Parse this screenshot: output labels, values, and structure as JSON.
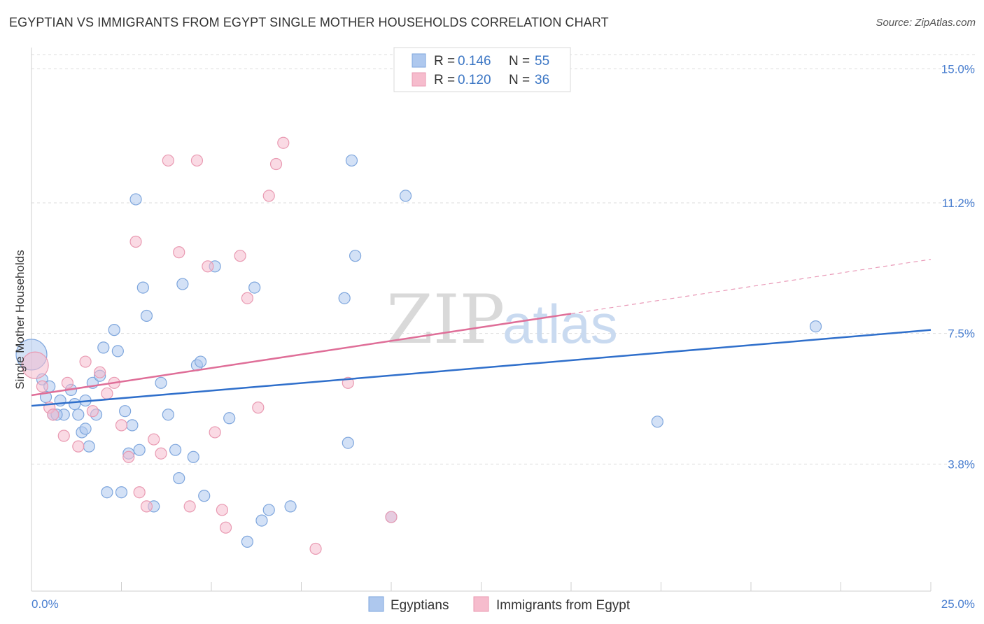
{
  "header": {
    "title": "EGYPTIAN VS IMMIGRANTS FROM EGYPT SINGLE MOTHER HOUSEHOLDS CORRELATION CHART",
    "source": "Source: ZipAtlas.com"
  },
  "watermark": {
    "zip": "ZIP",
    "atlas": "atlas"
  },
  "legend": {
    "rows": [
      {
        "r_label": "R =",
        "r_value": "0.146",
        "n_label": "N =",
        "n_value": "55"
      },
      {
        "r_label": "R =",
        "r_value": "0.120",
        "n_label": "N =",
        "n_value": "36"
      }
    ]
  },
  "bottom_legend": {
    "items": [
      "Egyptians",
      "Immigrants from Egypt"
    ]
  },
  "colors": {
    "blue_fill": "#aec8ee",
    "blue_stroke": "#7ea6dd",
    "blue_line": "#2f6fcb",
    "pink_fill": "#f6bccd",
    "pink_stroke": "#e99ab2",
    "pink_line": "#df6e98",
    "grid": "#dddddd",
    "axis_text": "#4a7fd0"
  },
  "chart_data": {
    "type": "scatter",
    "title": "EGYPTIAN VS IMMIGRANTS FROM EGYPT SINGLE MOTHER HOUSEHOLDS CORRELATION CHART",
    "xlabel": "",
    "ylabel": "Single Mother Households",
    "xlim": [
      0,
      25
    ],
    "ylim": [
      0.2,
      15.6
    ],
    "x_tick_labels": [
      "0.0%",
      "25.0%"
    ],
    "y_ticks": [
      3.8,
      7.5,
      11.2,
      15.0
    ],
    "y_tick_labels": [
      "3.8%",
      "7.5%",
      "11.2%",
      "15.0%"
    ],
    "grid": true,
    "series": [
      {
        "name": "Egyptians",
        "color": "blue",
        "r": "0.146",
        "n": "55",
        "trend": {
          "x0": 0,
          "y0": 5.45,
          "x1": 25,
          "y1": 7.6,
          "dash_from": null
        },
        "points": [
          [
            0.0,
            6.9,
            3
          ],
          [
            0.3,
            6.2,
            1
          ],
          [
            0.6,
            5.2,
            1
          ],
          [
            0.8,
            5.6,
            1
          ],
          [
            0.9,
            5.2,
            1
          ],
          [
            1.1,
            5.9,
            1
          ],
          [
            1.2,
            5.5,
            1
          ],
          [
            1.3,
            5.2,
            1
          ],
          [
            1.4,
            4.7,
            1
          ],
          [
            1.5,
            4.8,
            1
          ],
          [
            1.5,
            5.6,
            1
          ],
          [
            1.6,
            4.3,
            1
          ],
          [
            1.7,
            6.1,
            1
          ],
          [
            1.8,
            5.2,
            1
          ],
          [
            1.9,
            6.3,
            1
          ],
          [
            2.0,
            7.1,
            1
          ],
          [
            2.1,
            3.0,
            1
          ],
          [
            2.3,
            7.6,
            1
          ],
          [
            2.4,
            7.0,
            1
          ],
          [
            2.5,
            3.0,
            1
          ],
          [
            2.6,
            5.3,
            1
          ],
          [
            2.7,
            4.1,
            1
          ],
          [
            2.8,
            4.9,
            1
          ],
          [
            2.9,
            11.3,
            1
          ],
          [
            3.0,
            4.2,
            1
          ],
          [
            3.1,
            8.8,
            1
          ],
          [
            3.2,
            8.0,
            1
          ],
          [
            3.4,
            2.6,
            1
          ],
          [
            3.6,
            6.1,
            1
          ],
          [
            3.8,
            5.2,
            1
          ],
          [
            4.0,
            4.2,
            1
          ],
          [
            4.1,
            3.4,
            1
          ],
          [
            4.2,
            8.9,
            1
          ],
          [
            4.5,
            4.0,
            1
          ],
          [
            4.6,
            6.6,
            1
          ],
          [
            4.7,
            6.7,
            1
          ],
          [
            4.8,
            2.9,
            1
          ],
          [
            5.1,
            9.4,
            1
          ],
          [
            5.5,
            5.1,
            1
          ],
          [
            6.0,
            1.6,
            1
          ],
          [
            6.2,
            8.8,
            1
          ],
          [
            6.4,
            2.2,
            1
          ],
          [
            6.6,
            2.5,
            1
          ],
          [
            7.2,
            2.6,
            1
          ],
          [
            8.7,
            8.5,
            1
          ],
          [
            8.8,
            4.4,
            1
          ],
          [
            8.9,
            12.4,
            1
          ],
          [
            9.0,
            9.7,
            1
          ],
          [
            10.0,
            2.3,
            1
          ],
          [
            10.4,
            11.4,
            1
          ],
          [
            17.4,
            5.0,
            1
          ],
          [
            21.8,
            7.7,
            1
          ],
          [
            0.4,
            5.7,
            1
          ],
          [
            0.5,
            6.0,
            1
          ],
          [
            0.7,
            5.2,
            1
          ]
        ]
      },
      {
        "name": "Immigrants from Egypt",
        "color": "pink",
        "r": "0.120",
        "n": "36",
        "trend": {
          "x0": 0,
          "y0": 5.75,
          "x1": 25,
          "y1": 9.6,
          "dash_from": 15.0
        },
        "points": [
          [
            0.1,
            6.6,
            2
          ],
          [
            0.5,
            5.4,
            1
          ],
          [
            0.6,
            5.2,
            1
          ],
          [
            0.9,
            4.6,
            1
          ],
          [
            1.0,
            6.1,
            1
          ],
          [
            1.3,
            4.3,
            1
          ],
          [
            1.5,
            6.7,
            1
          ],
          [
            1.7,
            5.3,
            1
          ],
          [
            1.9,
            6.4,
            1
          ],
          [
            2.1,
            5.8,
            1
          ],
          [
            2.3,
            6.1,
            1
          ],
          [
            2.5,
            4.9,
            1
          ],
          [
            2.7,
            4.0,
            1
          ],
          [
            2.9,
            10.1,
            1
          ],
          [
            3.0,
            3.0,
            1
          ],
          [
            3.2,
            2.6,
            1
          ],
          [
            3.4,
            4.5,
            1
          ],
          [
            3.6,
            4.1,
            1
          ],
          [
            3.8,
            12.4,
            1
          ],
          [
            4.1,
            9.8,
            1
          ],
          [
            4.4,
            2.6,
            1
          ],
          [
            4.6,
            12.4,
            1
          ],
          [
            4.9,
            9.4,
            1
          ],
          [
            5.1,
            4.7,
            1
          ],
          [
            5.3,
            2.5,
            1
          ],
          [
            5.4,
            2.0,
            1
          ],
          [
            5.8,
            9.7,
            1
          ],
          [
            6.0,
            8.5,
            1
          ],
          [
            6.3,
            5.4,
            1
          ],
          [
            6.6,
            11.4,
            1
          ],
          [
            6.8,
            12.3,
            1
          ],
          [
            7.0,
            12.9,
            1
          ],
          [
            7.9,
            1.4,
            1
          ],
          [
            8.8,
            6.1,
            1
          ],
          [
            10.0,
            2.3,
            1
          ],
          [
            0.3,
            6.0,
            1
          ]
        ]
      }
    ]
  }
}
